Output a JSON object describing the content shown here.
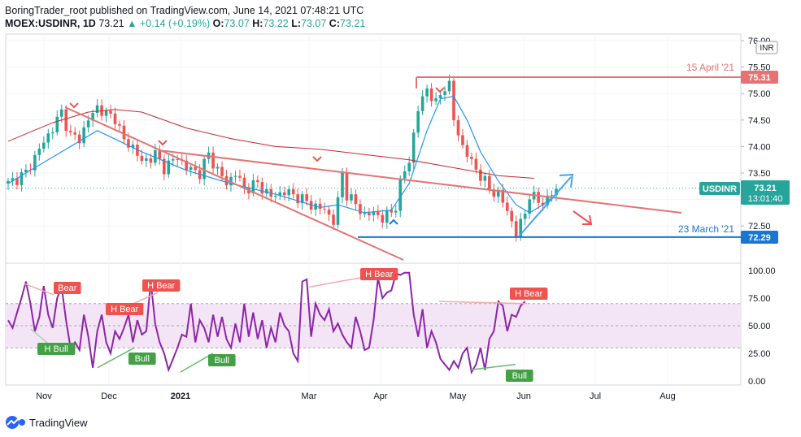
{
  "header": {
    "published": "BoringTrader_root published on TradingView.com, June 14, 2021 07:48:21 UTC",
    "symbol": "MOEX:USDINR, 1D",
    "last": "73.21",
    "change": "+0.14 (+0.19%)",
    "o_label": "O:",
    "o_value": "73.07",
    "h_label": "H:",
    "h_value": "73.22",
    "l_label": "L:",
    "l_value": "73.07",
    "c_label": "C:",
    "c_value": "73.21"
  },
  "footer": {
    "brand": "TradingView"
  },
  "colors": {
    "up": "#26a69a",
    "down": "#ef5350",
    "blue": "#1976d2",
    "ma_blue": "#2196f3",
    "ma_red": "#c62828",
    "trend_red": "#e57373",
    "rsi": "#8e24aa",
    "band": "#f3e5f5"
  },
  "chart_data": {
    "type": "candlestick",
    "title": "MOEX:USDINR, 1D",
    "currency_label": "INR",
    "price_axis": {
      "range": [
        72.0,
        76.05
      ],
      "ticks": [
        72.5,
        73.0,
        73.5,
        74.0,
        74.5,
        75.0,
        75.5,
        76.0
      ],
      "tick_labels": [
        "72.50",
        "73.00",
        "73.50",
        "74.00",
        "74.50",
        "75.00",
        "75.50",
        "76.00"
      ]
    },
    "x_axis": {
      "labels": [
        "Nov",
        "Dec",
        "2021",
        "Mar",
        "Apr",
        "May",
        "Jun",
        "Jul",
        "Aug"
      ]
    },
    "price_path": [
      [
        0,
        73.3
      ],
      [
        4,
        73.5
      ],
      [
        7,
        73.95
      ],
      [
        10,
        74.35
      ],
      [
        12,
        74.65
      ],
      [
        14,
        74.2
      ],
      [
        16,
        74.15
      ],
      [
        18,
        74.5
      ],
      [
        20,
        74.75
      ],
      [
        22,
        74.6
      ],
      [
        24,
        74.55
      ],
      [
        26,
        74.1
      ],
      [
        28,
        74.0
      ],
      [
        30,
        73.7
      ],
      [
        33,
        73.85
      ],
      [
        35,
        73.6
      ],
      [
        38,
        73.8
      ],
      [
        40,
        73.6
      ],
      [
        43,
        73.5
      ],
      [
        45,
        73.85
      ],
      [
        47,
        73.55
      ],
      [
        49,
        73.3
      ],
      [
        51,
        73.5
      ],
      [
        53,
        73.2
      ],
      [
        56,
        73.3
      ],
      [
        59,
        73.05
      ],
      [
        62,
        73.15
      ],
      [
        65,
        73.05
      ],
      [
        68,
        72.9
      ],
      [
        71,
        72.8
      ],
      [
        73,
        72.6
      ],
      [
        74,
        72.95
      ],
      [
        75,
        73.5
      ],
      [
        76,
        73.1
      ],
      [
        78,
        72.9
      ],
      [
        80,
        72.7
      ],
      [
        82,
        72.75
      ],
      [
        84,
        72.65
      ],
      [
        86,
        72.75
      ],
      [
        87,
        72.9
      ],
      [
        88,
        73.3
      ],
      [
        90,
        73.75
      ],
      [
        92,
        74.7
      ],
      [
        94,
        75.1
      ],
      [
        96,
        74.8
      ],
      [
        98,
        75.15
      ],
      [
        99,
        75.15
      ],
      [
        100,
        74.5
      ],
      [
        102,
        74.0
      ],
      [
        104,
        73.7
      ],
      [
        106,
        73.45
      ],
      [
        108,
        73.2
      ],
      [
        110,
        73.1
      ],
      [
        112,
        72.8
      ],
      [
        114,
        72.35
      ],
      [
        115,
        72.55
      ],
      [
        116,
        72.75
      ],
      [
        117,
        73.1
      ],
      [
        119,
        72.95
      ],
      [
        121,
        73.0
      ],
      [
        123,
        73.2
      ]
    ],
    "moving_averages": {
      "fast": [
        [
          0,
          73.3
        ],
        [
          10,
          73.8
        ],
        [
          20,
          74.3
        ],
        [
          30,
          73.9
        ],
        [
          40,
          73.55
        ],
        [
          50,
          73.3
        ],
        [
          60,
          73.1
        ],
        [
          70,
          72.85
        ],
        [
          74,
          72.9
        ],
        [
          80,
          72.75
        ],
        [
          86,
          72.8
        ],
        [
          90,
          73.3
        ],
        [
          94,
          74.3
        ],
        [
          97,
          74.9
        ],
        [
          100,
          74.95
        ],
        [
          103,
          74.5
        ],
        [
          106,
          73.9
        ],
        [
          110,
          73.35
        ],
        [
          114,
          72.9
        ],
        [
          117,
          72.75
        ],
        [
          120,
          72.9
        ],
        [
          123,
          73.1
        ]
      ],
      "slow": [
        [
          0,
          74.1
        ],
        [
          10,
          74.45
        ],
        [
          18,
          74.65
        ],
        [
          24,
          74.7
        ],
        [
          30,
          74.65
        ],
        [
          40,
          74.35
        ],
        [
          50,
          74.15
        ],
        [
          60,
          74.0
        ],
        [
          70,
          73.95
        ],
        [
          80,
          73.85
        ],
        [
          90,
          73.75
        ],
        [
          100,
          73.6
        ],
        [
          110,
          73.45
        ],
        [
          118,
          73.4
        ]
      ]
    },
    "annotations": [
      {
        "type": "level",
        "label": "15 April '21",
        "value": "75.31"
      },
      {
        "type": "level",
        "label": "23 March '21",
        "value": "72.29"
      },
      {
        "type": "price_tag",
        "symbol": "USDINR",
        "value": "73.21",
        "countdown": "13:01:40"
      }
    ],
    "rsi": {
      "axis": {
        "range": [
          0,
          100
        ],
        "ticks": [
          0,
          25,
          50,
          75,
          100
        ],
        "tick_labels": [
          "0.00",
          "25.00",
          "50.00",
          "75.00",
          "100.00"
        ],
        "band": [
          30,
          70
        ]
      },
      "values": [
        [
          0,
          55
        ],
        [
          1,
          48
        ],
        [
          2,
          62
        ],
        [
          3,
          75
        ],
        [
          4,
          90
        ],
        [
          5,
          70
        ],
        [
          6,
          45
        ],
        [
          7,
          58
        ],
        [
          8,
          86
        ],
        [
          9,
          60
        ],
        [
          10,
          48
        ],
        [
          11,
          75
        ],
        [
          12,
          85
        ],
        [
          13,
          55
        ],
        [
          14,
          30
        ],
        [
          15,
          35
        ],
        [
          16,
          28
        ],
        [
          17,
          60
        ],
        [
          18,
          40
        ],
        [
          19,
          12
        ],
        [
          20,
          45
        ],
        [
          21,
          60
        ],
        [
          22,
          35
        ],
        [
          23,
          25
        ],
        [
          24,
          45
        ],
        [
          25,
          38
        ],
        [
          26,
          48
        ],
        [
          27,
          60
        ],
        [
          28,
          35
        ],
        [
          29,
          55
        ],
        [
          30,
          42
        ],
        [
          31,
          45
        ],
        [
          32,
          90
        ],
        [
          33,
          52
        ],
        [
          34,
          35
        ],
        [
          35,
          25
        ],
        [
          36,
          10
        ],
        [
          37,
          20
        ],
        [
          38,
          30
        ],
        [
          39,
          42
        ],
        [
          40,
          40
        ],
        [
          41,
          70
        ],
        [
          42,
          35
        ],
        [
          43,
          55
        ],
        [
          44,
          48
        ],
        [
          45,
          35
        ],
        [
          46,
          60
        ],
        [
          47,
          40
        ],
        [
          48,
          58
        ],
        [
          49,
          38
        ],
        [
          50,
          30
        ],
        [
          51,
          52
        ],
        [
          52,
          35
        ],
        [
          53,
          70
        ],
        [
          54,
          40
        ],
        [
          55,
          62
        ],
        [
          56,
          38
        ],
        [
          57,
          55
        ],
        [
          58,
          30
        ],
        [
          59,
          48
        ],
        [
          60,
          35
        ],
        [
          61,
          62
        ],
        [
          62,
          50
        ],
        [
          63,
          45
        ],
        [
          64,
          25
        ],
        [
          65,
          18
        ],
        [
          66,
          90
        ],
        [
          67,
          92
        ],
        [
          68,
          40
        ],
        [
          69,
          70
        ],
        [
          70,
          60
        ],
        [
          71,
          55
        ],
        [
          72,
          65
        ],
        [
          73,
          45
        ],
        [
          74,
          52
        ],
        [
          75,
          42
        ],
        [
          76,
          35
        ],
        [
          77,
          30
        ],
        [
          78,
          58
        ],
        [
          79,
          45
        ],
        [
          80,
          28
        ],
        [
          81,
          30
        ],
        [
          82,
          55
        ],
        [
          83,
          93
        ],
        [
          84,
          75
        ],
        [
          85,
          80
        ],
        [
          86,
          82
        ],
        [
          87,
          97
        ],
        [
          88,
          96
        ],
        [
          89,
          98
        ],
        [
          90,
          98
        ],
        [
          91,
          60
        ],
        [
          92,
          40
        ],
        [
          93,
          65
        ],
        [
          94,
          30
        ],
        [
          95,
          45
        ],
        [
          96,
          35
        ],
        [
          97,
          20
        ],
        [
          98,
          15
        ],
        [
          99,
          10
        ],
        [
          100,
          18
        ],
        [
          101,
          12
        ],
        [
          102,
          25
        ],
        [
          103,
          30
        ],
        [
          104,
          8
        ],
        [
          105,
          15
        ],
        [
          106,
          30
        ],
        [
          107,
          10
        ],
        [
          108,
          38
        ],
        [
          109,
          45
        ],
        [
          110,
          72
        ],
        [
          111,
          68
        ],
        [
          112,
          45
        ],
        [
          113,
          60
        ],
        [
          114,
          58
        ],
        [
          115,
          68
        ],
        [
          116,
          72
        ]
      ],
      "signals": [
        "Bear",
        "H Bear",
        "H Bear",
        "H Bull",
        "Bull",
        "Bull",
        "H Bear",
        "H Bear",
        "Bull"
      ]
    }
  }
}
